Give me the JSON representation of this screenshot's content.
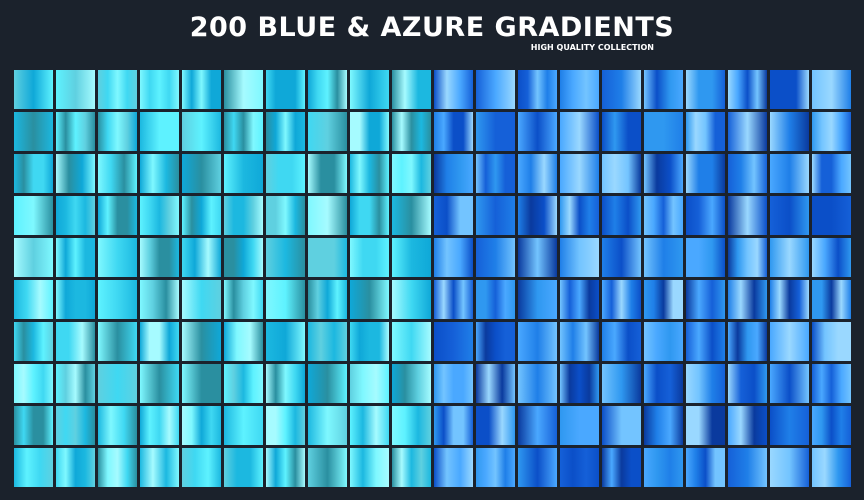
{
  "header": {
    "title": "200 BLUE & AZURE GRADIENTS",
    "subtitle": "HIGH QUALITY COLLECTION"
  },
  "background_color": "#1b222c",
  "swatches": {
    "count": 200,
    "columns": 20,
    "rows": 10,
    "azure_palette": [
      "#5ef2ff",
      "#7ff8ff",
      "#3fd8f2",
      "#1cb8e0",
      "#a6fbff",
      "#2a8fa0",
      "#5fd0e0",
      "#0fa8d8"
    ],
    "blue_palette": [
      "#1f7fe8",
      "#4aa8ff",
      "#0b4fc8",
      "#73c4ff",
      "#1560d8",
      "#9ad8ff",
      "#0a3a9e",
      "#2f98f0"
    ]
  }
}
